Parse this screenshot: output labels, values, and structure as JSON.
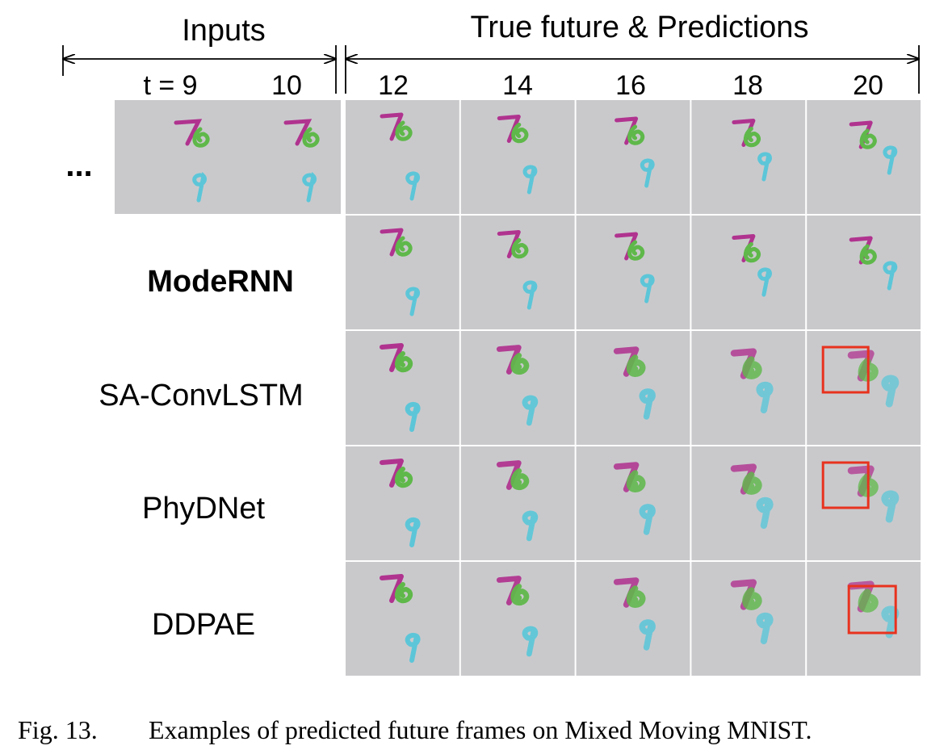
{
  "header": {
    "inputs_label": "Inputs",
    "future_label": "True future & Predictions"
  },
  "timesteps": {
    "inputs": [
      "t = 9",
      "10"
    ],
    "future": [
      "12",
      "14",
      "16",
      "18",
      "20"
    ]
  },
  "ellipsis": "...",
  "rows": [
    {
      "label": "",
      "highlight_col": null
    },
    {
      "label": "ModeRNN",
      "bold": true,
      "highlight_col": null
    },
    {
      "label": "SA-ConvLSTM",
      "bold": false,
      "highlight_col": 4
    },
    {
      "label": "PhyDNet",
      "bold": false,
      "highlight_col": 4
    },
    {
      "label": "DDPAE",
      "bold": false,
      "highlight_col": 4
    }
  ],
  "caption": {
    "number": "Fig. 13.",
    "text": "Examples of predicted future frames on Mixed Moving MNIST."
  },
  "colors": {
    "frame_bg": "#c9c9cc",
    "digit_magenta": "#b0338f",
    "digit_green": "#5fb84a",
    "digit_cyan": "#5cc6d8",
    "highlight_box": "#e8321e"
  }
}
